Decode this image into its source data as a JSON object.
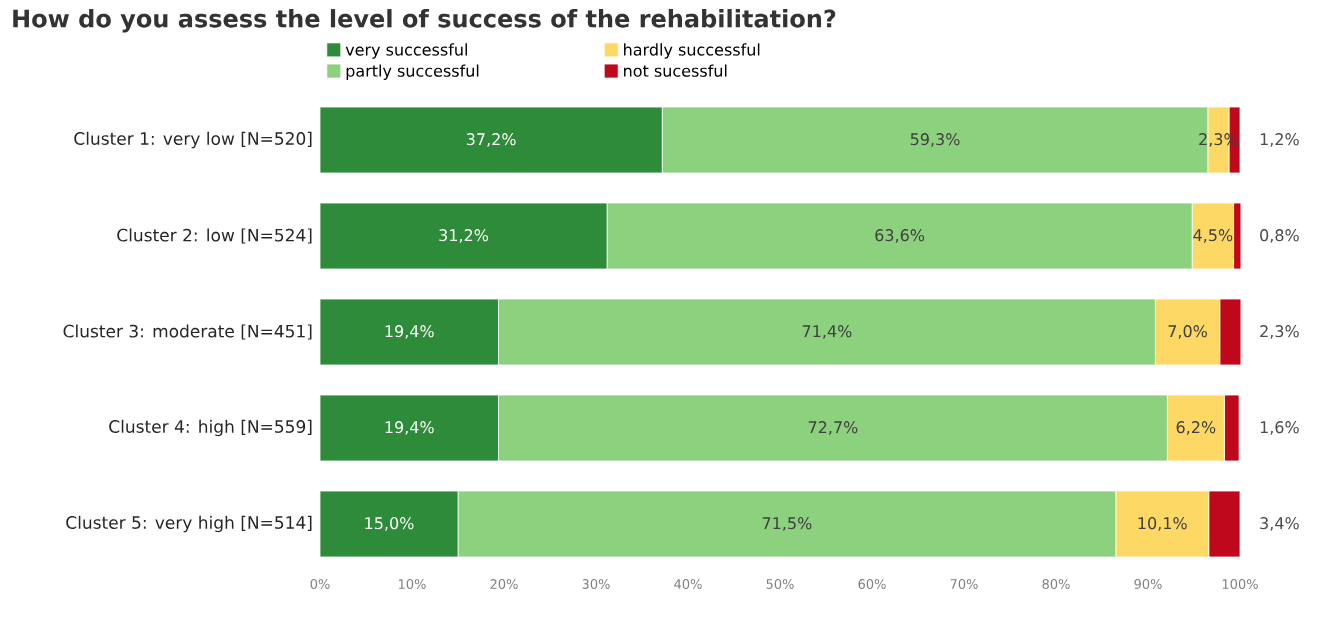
{
  "chart_data": {
    "type": "bar",
    "orientation": "horizontal",
    "stacked": true,
    "title": "How do you assess the level of success of the rehabilitation?",
    "categories": [
      "Cluster 1: very low [N=520]",
      "Cluster 2: low [N=524]",
      "Cluster 3: moderate [N=451]",
      "Cluster 4: high [N=559]",
      "Cluster 5: very high [N=514]"
    ],
    "series": [
      {
        "name": "very successful",
        "color": "#2e8b3a",
        "values": [
          37.2,
          31.2,
          19.4,
          19.4,
          15.0
        ],
        "value_labels": [
          "37,2%",
          "31,2%",
          "19,4%",
          "19,4%",
          "15,0%"
        ]
      },
      {
        "name": "partly successful",
        "color": "#8cd17d",
        "values": [
          59.3,
          63.6,
          71.4,
          72.7,
          71.5
        ],
        "value_labels": [
          "59,3%",
          "63,6%",
          "71,4%",
          "72,7%",
          "71,5%"
        ]
      },
      {
        "name": "hardly successful",
        "color": "#fdd865",
        "values": [
          2.3,
          4.5,
          7.0,
          6.2,
          10.1
        ],
        "value_labels": [
          "2,3%",
          "4,5%",
          "7,0%",
          "6,2%",
          "10,1%"
        ]
      },
      {
        "name": "not sucessful",
        "color": "#c0081c",
        "values": [
          1.2,
          0.8,
          2.3,
          1.6,
          3.4
        ],
        "value_labels": [
          "1,2%",
          "0,8%",
          "2,3%",
          "1,6%",
          "3,4%"
        ]
      }
    ],
    "xlim": [
      0,
      100
    ],
    "xticks": [
      {
        "value": 0,
        "label": "0%"
      },
      {
        "value": 10,
        "label": "10%"
      },
      {
        "value": 20,
        "label": "20%"
      },
      {
        "value": 30,
        "label": "30%"
      },
      {
        "value": 40,
        "label": "40%"
      },
      {
        "value": 50,
        "label": "50%"
      },
      {
        "value": 60,
        "label": "60%"
      },
      {
        "value": 70,
        "label": "70%"
      },
      {
        "value": 80,
        "label": "80%"
      },
      {
        "value": 90,
        "label": "90%"
      },
      {
        "value": 100,
        "label": "100%"
      }
    ],
    "grid": false,
    "legend": "top"
  }
}
